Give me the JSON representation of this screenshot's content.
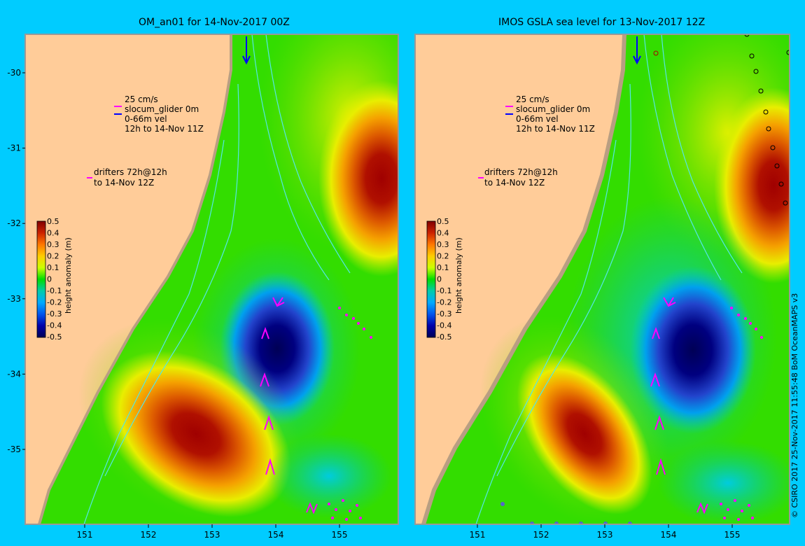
{
  "copyright": "© CSIRO 2017  25-Nov-2017 11:55:48 BoM OceanMAPS v3",
  "colors": {
    "background": "#00ccff",
    "land": "#ffcc99",
    "coast_fringe": "#b89e82",
    "contour": "#55e6e6",
    "drifter": "#ff00ff",
    "glider": "#0000ff"
  },
  "panels": [
    {
      "title": "OM_an01 for 14-Nov-2017 00Z",
      "legend": {
        "speed": "25 cm/s",
        "glider": "slocum_glider 0m",
        "vel": "0-66m vel",
        "period": "12h to 14-Nov 11Z",
        "drifters_1": "drifters 72h@12h",
        "drifters_2": "to 14-Nov 12Z"
      },
      "y_ticks": [
        "-30",
        "-31",
        "-32",
        "-33",
        "-34",
        "-35"
      ],
      "x_ticks": [
        "151",
        "152",
        "153",
        "154",
        "155"
      ],
      "colorbar": {
        "label": "height anomaly (m)",
        "ticks": [
          "0.5",
          "0.4",
          "0.3",
          "0.2",
          "0.1",
          "0",
          "-0.1",
          "-0.2",
          "-0.3",
          "-0.4",
          "-0.5"
        ]
      }
    },
    {
      "title": "IMOS GSLA sea level  for 13-Nov-2017 12Z",
      "legend": {
        "speed": "25 cm/s",
        "glider": "slocum_glider 0m",
        "vel": "0-66m vel",
        "period": "12h to 14-Nov 11Z",
        "drifters_1": "drifters 72h@12h",
        "drifters_2": "to 14-Nov 12Z"
      },
      "y_ticks": [
        "-30",
        "-31",
        "-32",
        "-33",
        "-34",
        "-35"
      ],
      "x_ticks": [
        "151",
        "152",
        "153",
        "154",
        "155"
      ],
      "colorbar": {
        "label": "height anomaly (m)",
        "ticks": [
          "0.5",
          "0.4",
          "0.3",
          "0.2",
          "0.1",
          "0",
          "-0.1",
          "-0.2",
          "-0.3",
          "-0.4",
          "-0.5"
        ]
      }
    }
  ]
}
